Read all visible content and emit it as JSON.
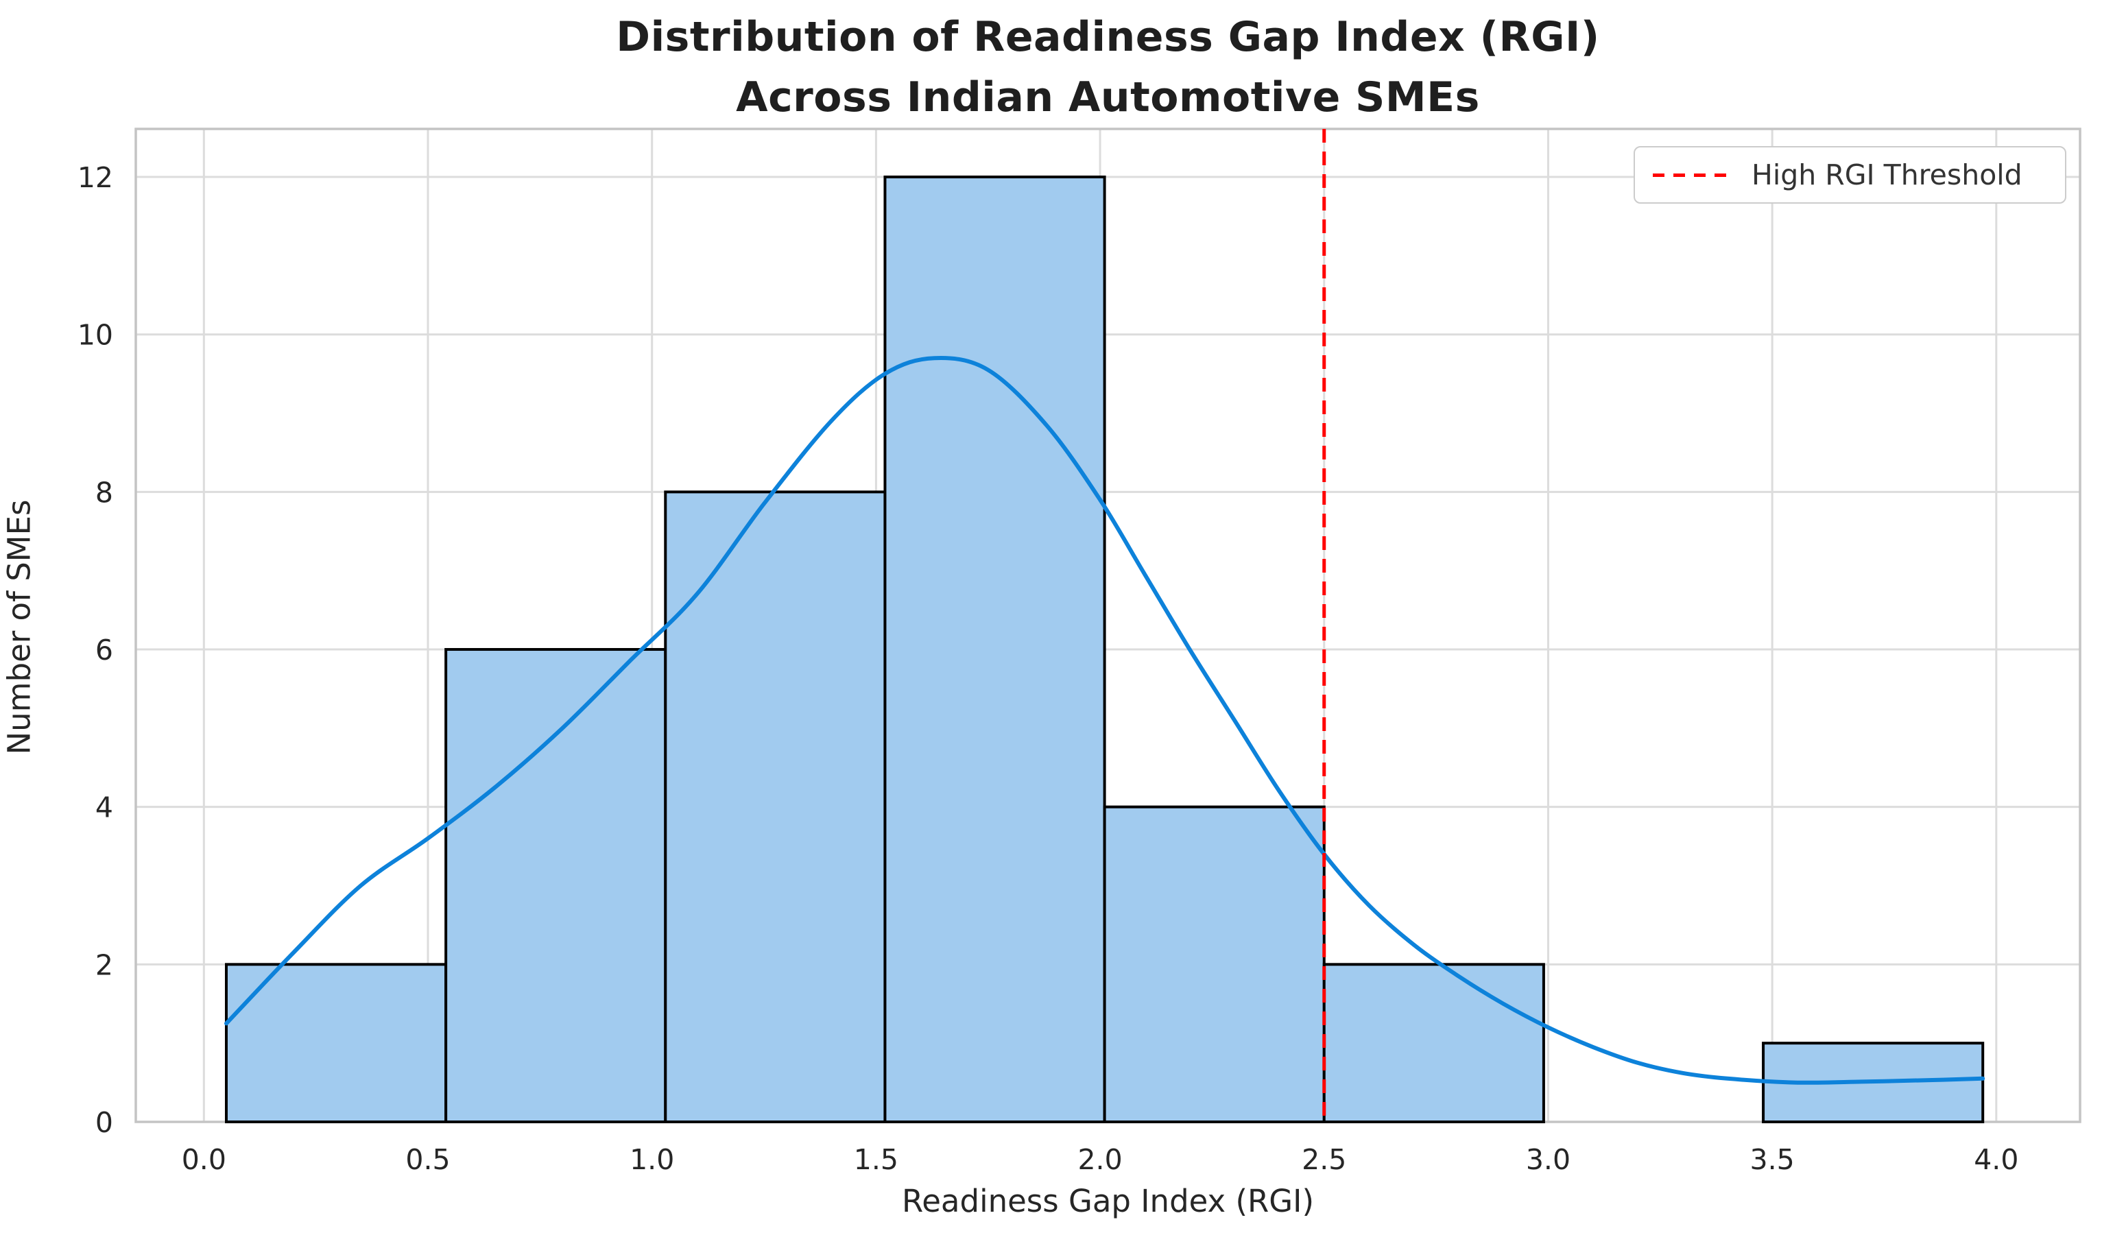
{
  "chart": {
    "title_line1": "Distribution of Readiness Gap Index (RGI)",
    "title_line2": "Across Indian Automotive SMEs"
  },
  "chart_data": {
    "type": "bar",
    "subtype": "histogram-with-kde",
    "title": "Distribution of Readiness Gap Index (RGI)\nAcross Indian Automotive SMEs",
    "xlabel": "Readiness Gap Index (RGI)",
    "ylabel": "Number of SMEs",
    "bin_edges": [
      0.05,
      0.54,
      1.03,
      1.52,
      2.01,
      2.5,
      2.99,
      3.48,
      3.97
    ],
    "counts": [
      2,
      6,
      8,
      12,
      4,
      2,
      0,
      1
    ],
    "kde": {
      "x": [
        0.05,
        0.2,
        0.35,
        0.5,
        0.65,
        0.8,
        0.95,
        1.1,
        1.25,
        1.4,
        1.52,
        1.63,
        1.75,
        1.88,
        2.0,
        2.1,
        2.2,
        2.3,
        2.4,
        2.5,
        2.6,
        2.7,
        2.8,
        2.9,
        3.0,
        3.1,
        3.2,
        3.3,
        3.4,
        3.55,
        3.7,
        3.85,
        3.97
      ],
      "y": [
        1.25,
        2.15,
        3.0,
        3.6,
        4.25,
        5.0,
        5.85,
        6.7,
        7.85,
        8.9,
        9.5,
        9.7,
        9.55,
        8.85,
        7.9,
        6.95,
        6.0,
        5.1,
        4.2,
        3.4,
        2.75,
        2.25,
        1.85,
        1.5,
        1.2,
        0.95,
        0.75,
        0.62,
        0.55,
        0.5,
        0.51,
        0.53,
        0.55
      ]
    },
    "threshold": {
      "x": 2.5,
      "label": "High RGI Threshold",
      "color": "#ff0000"
    },
    "x_ticks": [
      0.0,
      0.5,
      1.0,
      1.5,
      2.0,
      2.5,
      3.0,
      3.5,
      4.0
    ],
    "x_tick_labels": [
      "0.0",
      "0.5",
      "1.0",
      "1.5",
      "2.0",
      "2.5",
      "3.0",
      "3.5",
      "4.0"
    ],
    "y_ticks": [
      0,
      2,
      4,
      6,
      8,
      10,
      12
    ],
    "y_tick_labels": [
      "0",
      "2",
      "4",
      "6",
      "8",
      "10",
      "12"
    ],
    "xlim": [
      -0.152,
      4.187
    ],
    "ylim": [
      0,
      12.61
    ],
    "grid": true,
    "legend_position": "upper right",
    "colors": {
      "bar_fill": "#a1cbef",
      "bar_edge": "#000000",
      "kde_line": "#0d82da",
      "grid": "#dcdcdc",
      "spine": "#c4c4c4",
      "text": "#262626"
    }
  }
}
